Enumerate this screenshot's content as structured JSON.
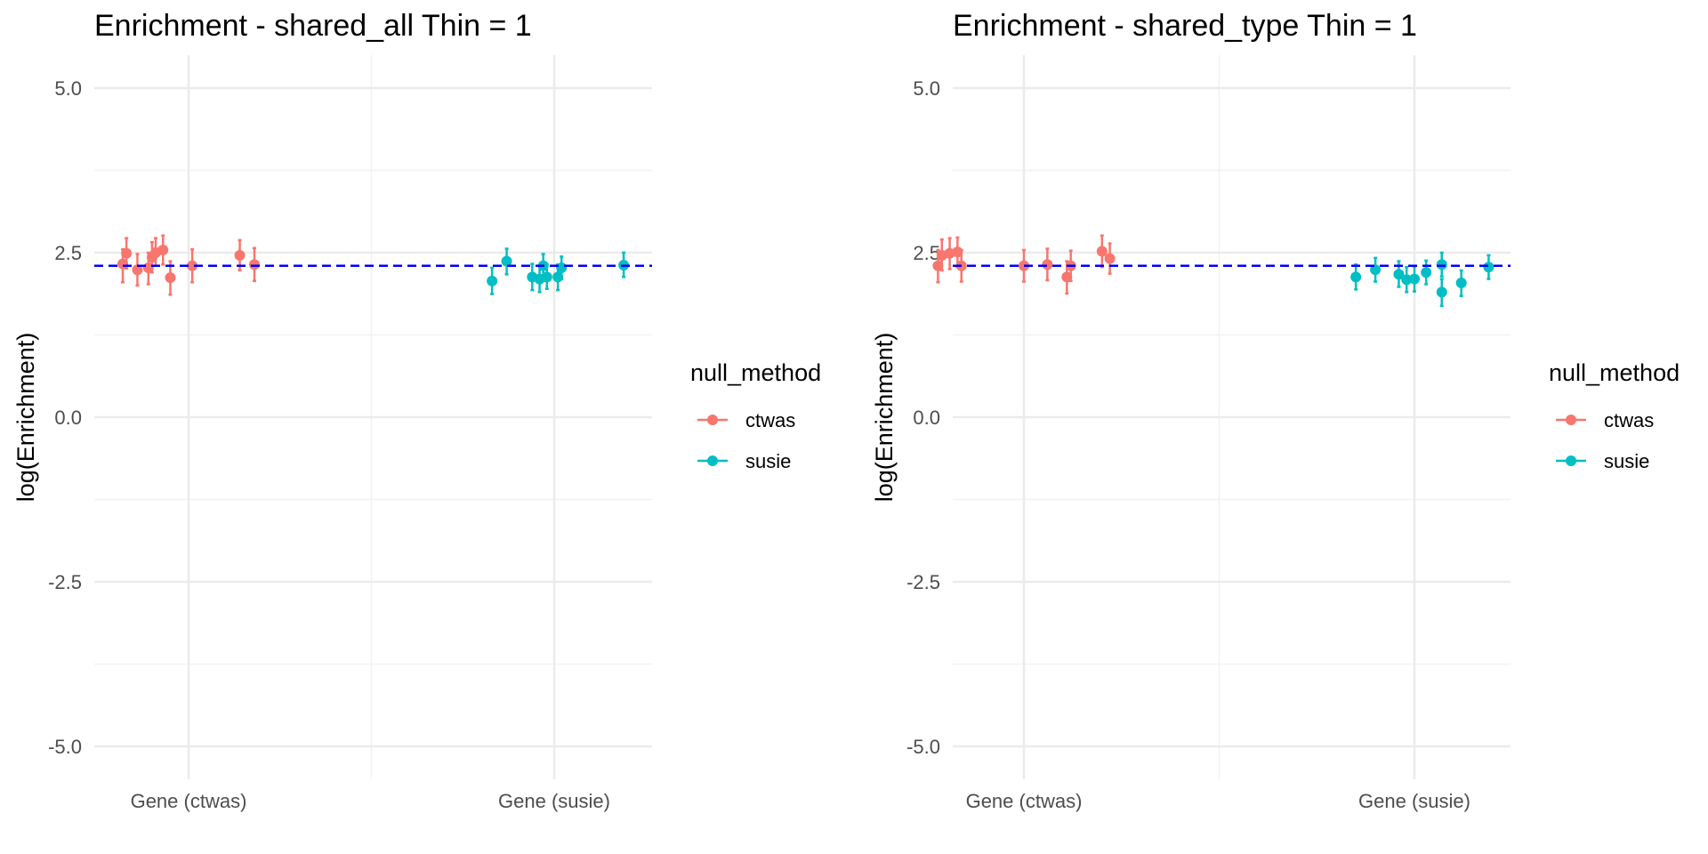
{
  "chart_data": [
    {
      "type": "scatter",
      "title": "Enrichment - shared_all Thin = 1",
      "xlabel": "",
      "ylabel": "log(Enrichment)",
      "categories": [
        "Gene (ctwas)",
        "Gene (susie)"
      ],
      "ylim": [
        -5.5,
        5.5
      ],
      "yticks": [
        "5.0",
        "2.5",
        "0.0",
        "-2.5",
        "-5.0"
      ],
      "grid": true,
      "reference_line": {
        "y": 2.3,
        "style": "dashed",
        "color": "#0000ff"
      },
      "legend": {
        "title": "null_method",
        "placement": "right"
      },
      "series": [
        {
          "name": "ctwas",
          "color": "#f8766d",
          "points": [
            {
              "x": 0.82,
              "y": 2.33,
              "lo": 2.05,
              "hi": 2.55
            },
            {
              "x": 0.83,
              "y": 2.49,
              "lo": 2.26,
              "hi": 2.72
            },
            {
              "x": 0.86,
              "y": 2.24,
              "lo": 2.0,
              "hi": 2.48
            },
            {
              "x": 0.89,
              "y": 2.27,
              "lo": 2.02,
              "hi": 2.5
            },
            {
              "x": 0.9,
              "y": 2.43,
              "lo": 2.2,
              "hi": 2.66
            },
            {
              "x": 0.91,
              "y": 2.5,
              "lo": 2.3,
              "hi": 2.72
            },
            {
              "x": 0.93,
              "y": 2.54,
              "lo": 2.32,
              "hi": 2.76
            },
            {
              "x": 0.95,
              "y": 2.12,
              "lo": 1.86,
              "hi": 2.37
            },
            {
              "x": 1.01,
              "y": 2.3,
              "lo": 2.05,
              "hi": 2.55
            },
            {
              "x": 1.14,
              "y": 2.46,
              "lo": 2.23,
              "hi": 2.69
            },
            {
              "x": 1.18,
              "y": 2.32,
              "lo": 2.07,
              "hi": 2.57
            }
          ]
        },
        {
          "name": "susie",
          "color": "#00bfc4",
          "points": [
            {
              "x": 1.83,
              "y": 2.07,
              "lo": 1.87,
              "hi": 2.27
            },
            {
              "x": 1.87,
              "y": 2.37,
              "lo": 2.17,
              "hi": 2.56
            },
            {
              "x": 1.94,
              "y": 2.13,
              "lo": 1.93,
              "hi": 2.33
            },
            {
              "x": 1.96,
              "y": 2.1,
              "lo": 1.9,
              "hi": 2.3
            },
            {
              "x": 1.97,
              "y": 2.3,
              "lo": 2.13,
              "hi": 2.48
            },
            {
              "x": 1.98,
              "y": 2.13,
              "lo": 1.95,
              "hi": 2.32
            },
            {
              "x": 2.01,
              "y": 2.13,
              "lo": 1.93,
              "hi": 2.32
            },
            {
              "x": 2.02,
              "y": 2.27,
              "lo": 2.1,
              "hi": 2.44
            },
            {
              "x": 2.19,
              "y": 2.31,
              "lo": 2.13,
              "hi": 2.5
            }
          ]
        }
      ]
    },
    {
      "type": "scatter",
      "title": "Enrichment - shared_type Thin = 1",
      "xlabel": "",
      "ylabel": "log(Enrichment)",
      "categories": [
        "Gene (ctwas)",
        "Gene (susie)"
      ],
      "ylim": [
        -5.5,
        5.5
      ],
      "yticks": [
        "5.0",
        "2.5",
        "0.0",
        "-2.5",
        "-5.0"
      ],
      "grid": true,
      "reference_line": {
        "y": 2.3,
        "style": "dashed",
        "color": "#0000ff"
      },
      "legend": {
        "title": "null_method",
        "placement": "right"
      },
      "series": [
        {
          "name": "ctwas",
          "color": "#f8766d",
          "points": [
            {
              "x": 0.78,
              "y": 2.3,
              "lo": 2.05,
              "hi": 2.54
            },
            {
              "x": 0.79,
              "y": 2.46,
              "lo": 2.23,
              "hi": 2.7
            },
            {
              "x": 0.81,
              "y": 2.49,
              "lo": 2.25,
              "hi": 2.72
            },
            {
              "x": 0.83,
              "y": 2.51,
              "lo": 2.28,
              "hi": 2.73
            },
            {
              "x": 0.84,
              "y": 2.3,
              "lo": 2.06,
              "hi": 2.54
            },
            {
              "x": 1.0,
              "y": 2.3,
              "lo": 2.06,
              "hi": 2.54
            },
            {
              "x": 1.06,
              "y": 2.32,
              "lo": 2.08,
              "hi": 2.56
            },
            {
              "x": 1.11,
              "y": 2.13,
              "lo": 1.88,
              "hi": 2.37
            },
            {
              "x": 1.12,
              "y": 2.3,
              "lo": 2.07,
              "hi": 2.53
            },
            {
              "x": 1.2,
              "y": 2.52,
              "lo": 2.28,
              "hi": 2.76
            },
            {
              "x": 1.22,
              "y": 2.41,
              "lo": 2.18,
              "hi": 2.64
            }
          ]
        },
        {
          "name": "susie",
          "color": "#00bfc4",
          "points": [
            {
              "x": 1.85,
              "y": 2.13,
              "lo": 1.94,
              "hi": 2.32
            },
            {
              "x": 1.9,
              "y": 2.24,
              "lo": 2.06,
              "hi": 2.42
            },
            {
              "x": 1.96,
              "y": 2.17,
              "lo": 1.98,
              "hi": 2.37
            },
            {
              "x": 1.98,
              "y": 2.09,
              "lo": 1.9,
              "hi": 2.28
            },
            {
              "x": 2.0,
              "y": 2.1,
              "lo": 1.91,
              "hi": 2.29
            },
            {
              "x": 2.03,
              "y": 2.2,
              "lo": 2.02,
              "hi": 2.38
            },
            {
              "x": 2.07,
              "y": 2.32,
              "lo": 2.14,
              "hi": 2.5
            },
            {
              "x": 2.07,
              "y": 1.9,
              "lo": 1.69,
              "hi": 2.1
            },
            {
              "x": 2.12,
              "y": 2.04,
              "lo": 1.84,
              "hi": 2.23
            },
            {
              "x": 2.19,
              "y": 2.28,
              "lo": 2.1,
              "hi": 2.46
            }
          ]
        }
      ]
    }
  ]
}
